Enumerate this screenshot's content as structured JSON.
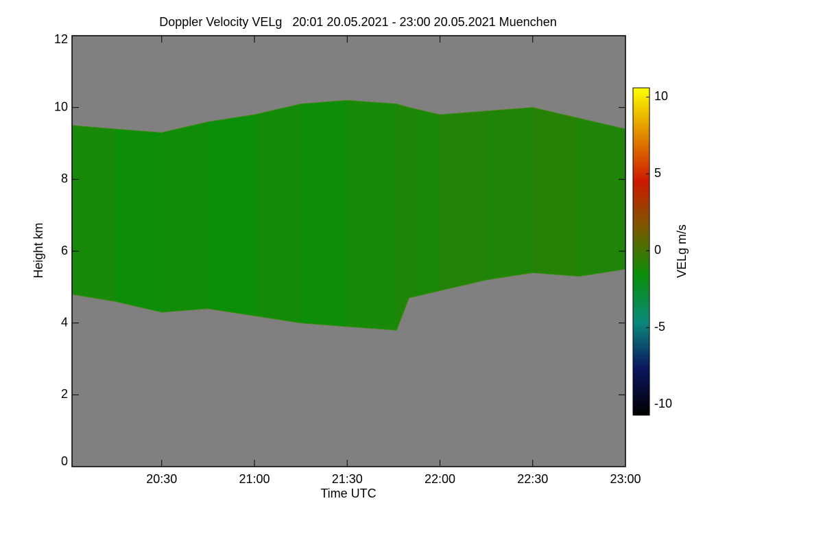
{
  "chart_data": {
    "type": "heatmap",
    "title": "Doppler Velocity VELg   20:01 20.05.2021 - 23:00 20.05.2021 Muenchen",
    "xlabel": "Time UTC",
    "ylabel": "Height km",
    "x": [
      "20:01",
      "20:15",
      "20:30",
      "20:45",
      "21:00",
      "21:15",
      "21:30",
      "21:46",
      "21:50",
      "22:00",
      "22:15",
      "22:30",
      "22:45",
      "23:00"
    ],
    "cloud_top": [
      9.5,
      9.4,
      9.3,
      9.6,
      9.8,
      10.1,
      10.2,
      10.1,
      10.0,
      9.8,
      9.9,
      10.0,
      9.7,
      9.4
    ],
    "cloud_base": [
      4.8,
      4.6,
      4.3,
      4.4,
      4.2,
      4.0,
      3.9,
      3.8,
      4.7,
      4.9,
      5.2,
      5.4,
      5.3,
      5.5
    ],
    "values": [
      -1.2,
      -1.5,
      -1.4,
      -1.6,
      -1.3,
      -1.5,
      -1.2,
      -1.0,
      -1.1,
      -0.9,
      -1.0,
      -0.8,
      -1.0,
      -1.2
    ],
    "xlim": [
      "20:01",
      "23:00"
    ],
    "xticks": [
      "20:30",
      "21:00",
      "21:30",
      "22:00",
      "22:30",
      "23:00"
    ],
    "ylim": [
      0,
      12
    ],
    "yticks": [
      0,
      2,
      4,
      6,
      8,
      10,
      12
    ],
    "background": "#808080",
    "colorbar": {
      "label": "VELg m/s",
      "lim": [
        -10.7,
        10.6
      ],
      "ticks": [
        10,
        5,
        0,
        -5,
        -10
      ],
      "colormap": [
        "#000000",
        "#0b1660",
        "#0a8a7a",
        "#0a8f0a",
        "#7a5a00",
        "#cc1a00",
        "#e08a00",
        "#ffff00"
      ]
    }
  }
}
